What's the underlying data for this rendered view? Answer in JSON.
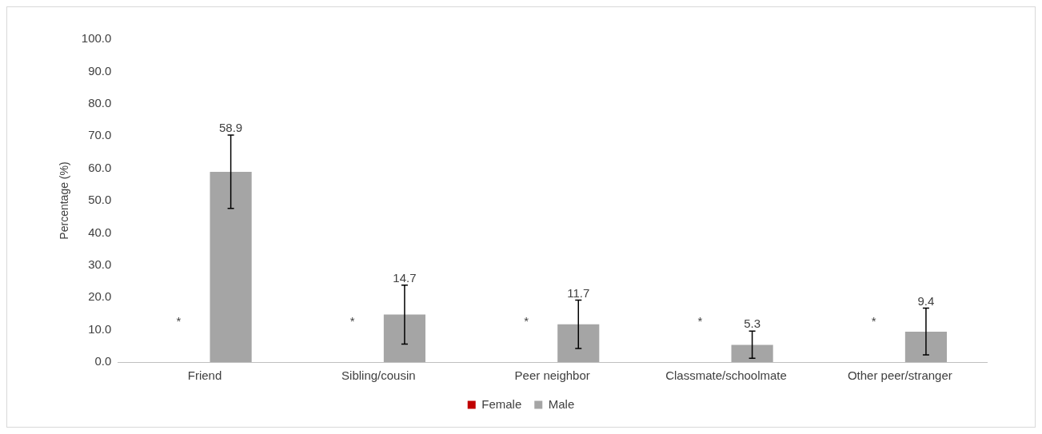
{
  "chart_data": {
    "type": "bar",
    "ylabel": "Percentage (%)",
    "categories": [
      "Friend",
      "Sibling/cousin",
      "Peer neighbor",
      "Classmate/schoolmate",
      "Other peer/stranger"
    ],
    "series": [
      {
        "name": "Female",
        "color": "#c00000",
        "values": [
          null,
          null,
          null,
          null,
          null
        ],
        "value_labels": [
          "*",
          "*",
          "*",
          "*",
          "*"
        ]
      },
      {
        "name": "Male",
        "color": "#a5a5a5",
        "values": [
          58.9,
          14.7,
          11.7,
          5.3,
          9.4
        ],
        "errors": [
          [
            47.6,
            70.3
          ],
          [
            5.6,
            23.8
          ],
          [
            4.2,
            19.2
          ],
          [
            1.2,
            9.6
          ],
          [
            2.2,
            16.7
          ]
        ],
        "data_labels": true
      }
    ],
    "ylim": [
      0,
      100
    ],
    "yticks": [
      {
        "value": 0,
        "label": "0.0"
      },
      {
        "value": 10,
        "label": "10.0"
      },
      {
        "value": 20,
        "label": "20.0"
      },
      {
        "value": 30,
        "label": "30.0"
      },
      {
        "value": 40,
        "label": "40.0"
      },
      {
        "value": 50,
        "label": "50.0"
      },
      {
        "value": 60,
        "label": "60.0"
      },
      {
        "value": 70,
        "label": "70.0"
      },
      {
        "value": 80,
        "label": "80.0"
      },
      {
        "value": 90,
        "label": "90.0"
      },
      {
        "value": 100,
        "label": "100.0"
      }
    ],
    "grid": false,
    "legend": "bottom"
  }
}
